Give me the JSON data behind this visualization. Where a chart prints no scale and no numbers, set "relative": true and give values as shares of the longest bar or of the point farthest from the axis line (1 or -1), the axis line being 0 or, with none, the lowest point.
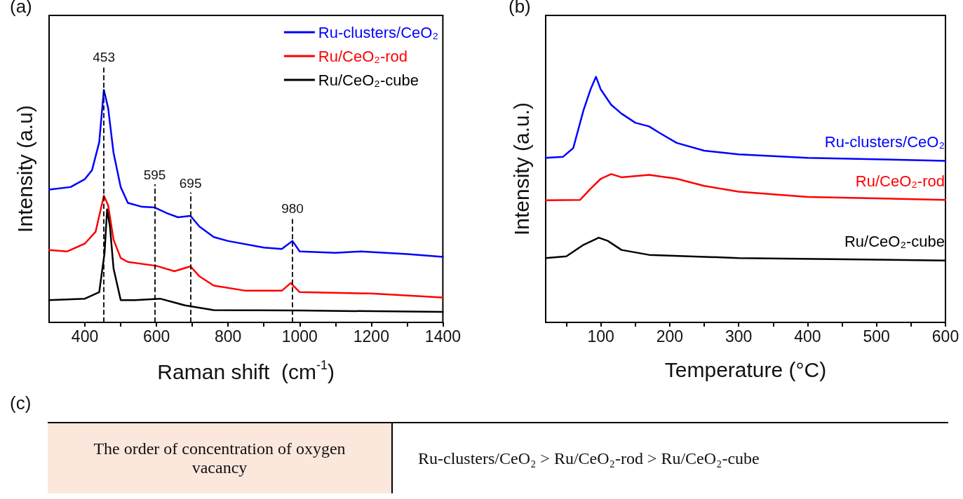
{
  "chart_data": [
    {
      "type": "line",
      "title": "(a)",
      "xlabel": "Raman shift  (cm$^{-1}$)",
      "ylabel": "Intensity (a.u)",
      "relative": true,
      "legend": "top right",
      "line_style": "solid",
      "marker": "none",
      "xlim": [
        300,
        1400
      ],
      "xticks": [
        400,
        {
          "value": 500,
          "label": null
        },
        600,
        {
          "value": 700,
          "label": null
        },
        800,
        {
          "value": 900,
          "label": null
        },
        1000,
        {
          "value": 1100,
          "label": null
        },
        1200,
        {
          "value": 1300,
          "label": null
        },
        1400
      ],
      "ref_lines": [
        {
          "axis": "x",
          "value": 453,
          "label": "453",
          "line_style": "dashed",
          "color": "#000000"
        },
        {
          "axis": "x",
          "value": 595,
          "label": "595",
          "line_style": "dashed",
          "color": "#000000"
        },
        {
          "axis": "x",
          "value": 695,
          "label": "695",
          "line_style": "dashed",
          "color": "#000000"
        },
        {
          "axis": "x",
          "value": 980,
          "label": "980",
          "line_style": "dashed",
          "color": "#000000"
        }
      ],
      "series": [
        {
          "name": "Ru-clusters/CeO₂",
          "color": "#0000ff",
          "x": [
            300,
            360,
            400,
            420,
            440,
            453,
            465,
            480,
            500,
            520,
            560,
            595,
            630,
            660,
            695,
            720,
            760,
            800,
            900,
            950,
            980,
            1000,
            1100,
            1170,
            1300,
            1400
          ],
          "values": [
            0.571,
            0.582,
            0.616,
            0.655,
            0.774,
            1.0,
            0.921,
            0.729,
            0.582,
            0.514,
            0.497,
            0.494,
            0.469,
            0.452,
            0.458,
            0.412,
            0.367,
            0.35,
            0.322,
            0.316,
            0.35,
            0.305,
            0.299,
            0.305,
            0.294,
            0.282
          ]
        },
        {
          "name": "Ru/CeO₂-rod",
          "color": "#ff0000",
          "x": [
            300,
            350,
            400,
            430,
            453,
            465,
            480,
            500,
            520,
            600,
            650,
            695,
            720,
            760,
            850,
            950,
            975,
            1000,
            1200,
            1400
          ],
          "values": [
            0.311,
            0.305,
            0.339,
            0.39,
            0.545,
            0.503,
            0.356,
            0.277,
            0.26,
            0.243,
            0.22,
            0.241,
            0.198,
            0.158,
            0.136,
            0.136,
            0.169,
            0.13,
            0.124,
            0.107
          ]
        },
        {
          "name": "Ru/CeO₂-cube",
          "color": "#000000",
          "x": [
            300,
            400,
            440,
            455,
            462,
            470,
            480,
            500,
            540,
            610,
            680,
            760,
            1000,
            1400
          ],
          "values": [
            0.096,
            0.102,
            0.13,
            0.299,
            0.486,
            0.412,
            0.232,
            0.096,
            0.096,
            0.102,
            0.073,
            0.053,
            0.051,
            0.045
          ]
        }
      ]
    },
    {
      "type": "line",
      "title": "(b)",
      "xlabel": "Temperature (°C)",
      "ylabel": "Intensity (a.u.)",
      "relative": true,
      "line_style": "solid",
      "marker": "none",
      "xlim": [
        20,
        600
      ],
      "xticks": [
        {
          "value": 50,
          "label": null
        },
        100,
        {
          "value": 150,
          "label": null
        },
        200,
        {
          "value": 250,
          "label": null
        },
        300,
        {
          "value": 350,
          "label": null
        },
        400,
        {
          "value": 450,
          "label": null
        },
        500,
        {
          "value": 550,
          "label": null
        },
        600
      ],
      "series": [
        {
          "name": "Ru-clusters/CeO₂",
          "color": "#0000ff",
          "x": [
            20,
            45,
            60,
            75,
            85,
            93,
            100,
            115,
            130,
            150,
            170,
            185,
            210,
            250,
            300,
            400,
            600
          ],
          "values": [
            0.67,
            0.674,
            0.71,
            0.865,
            0.948,
            1.0,
            0.948,
            0.886,
            0.85,
            0.813,
            0.798,
            0.772,
            0.731,
            0.699,
            0.684,
            0.67,
            0.658
          ]
        },
        {
          "name": "Ru/CeO₂-rod",
          "color": "#ff0000",
          "x": [
            20,
            70,
            85,
            100,
            115,
            130,
            170,
            210,
            250,
            300,
            400,
            600
          ],
          "values": [
            0.497,
            0.499,
            0.544,
            0.585,
            0.604,
            0.591,
            0.601,
            0.585,
            0.556,
            0.532,
            0.511,
            0.499
          ]
        },
        {
          "name": "Ru/CeO₂-cube",
          "color": "#000000",
          "x": [
            20,
            50,
            75,
            97,
            110,
            130,
            170,
            300,
            600
          ],
          "values": [
            0.262,
            0.269,
            0.316,
            0.345,
            0.332,
            0.295,
            0.275,
            0.262,
            0.252
          ]
        }
      ]
    },
    {
      "type": "other",
      "title": "(c)",
      "annotations": [
        "The order of concentration of oxygen vacancy",
        "Ru-clusters/CeO₂ > Ru/CeO₂-rod > Ru/CeO₂-cube"
      ]
    }
  ]
}
